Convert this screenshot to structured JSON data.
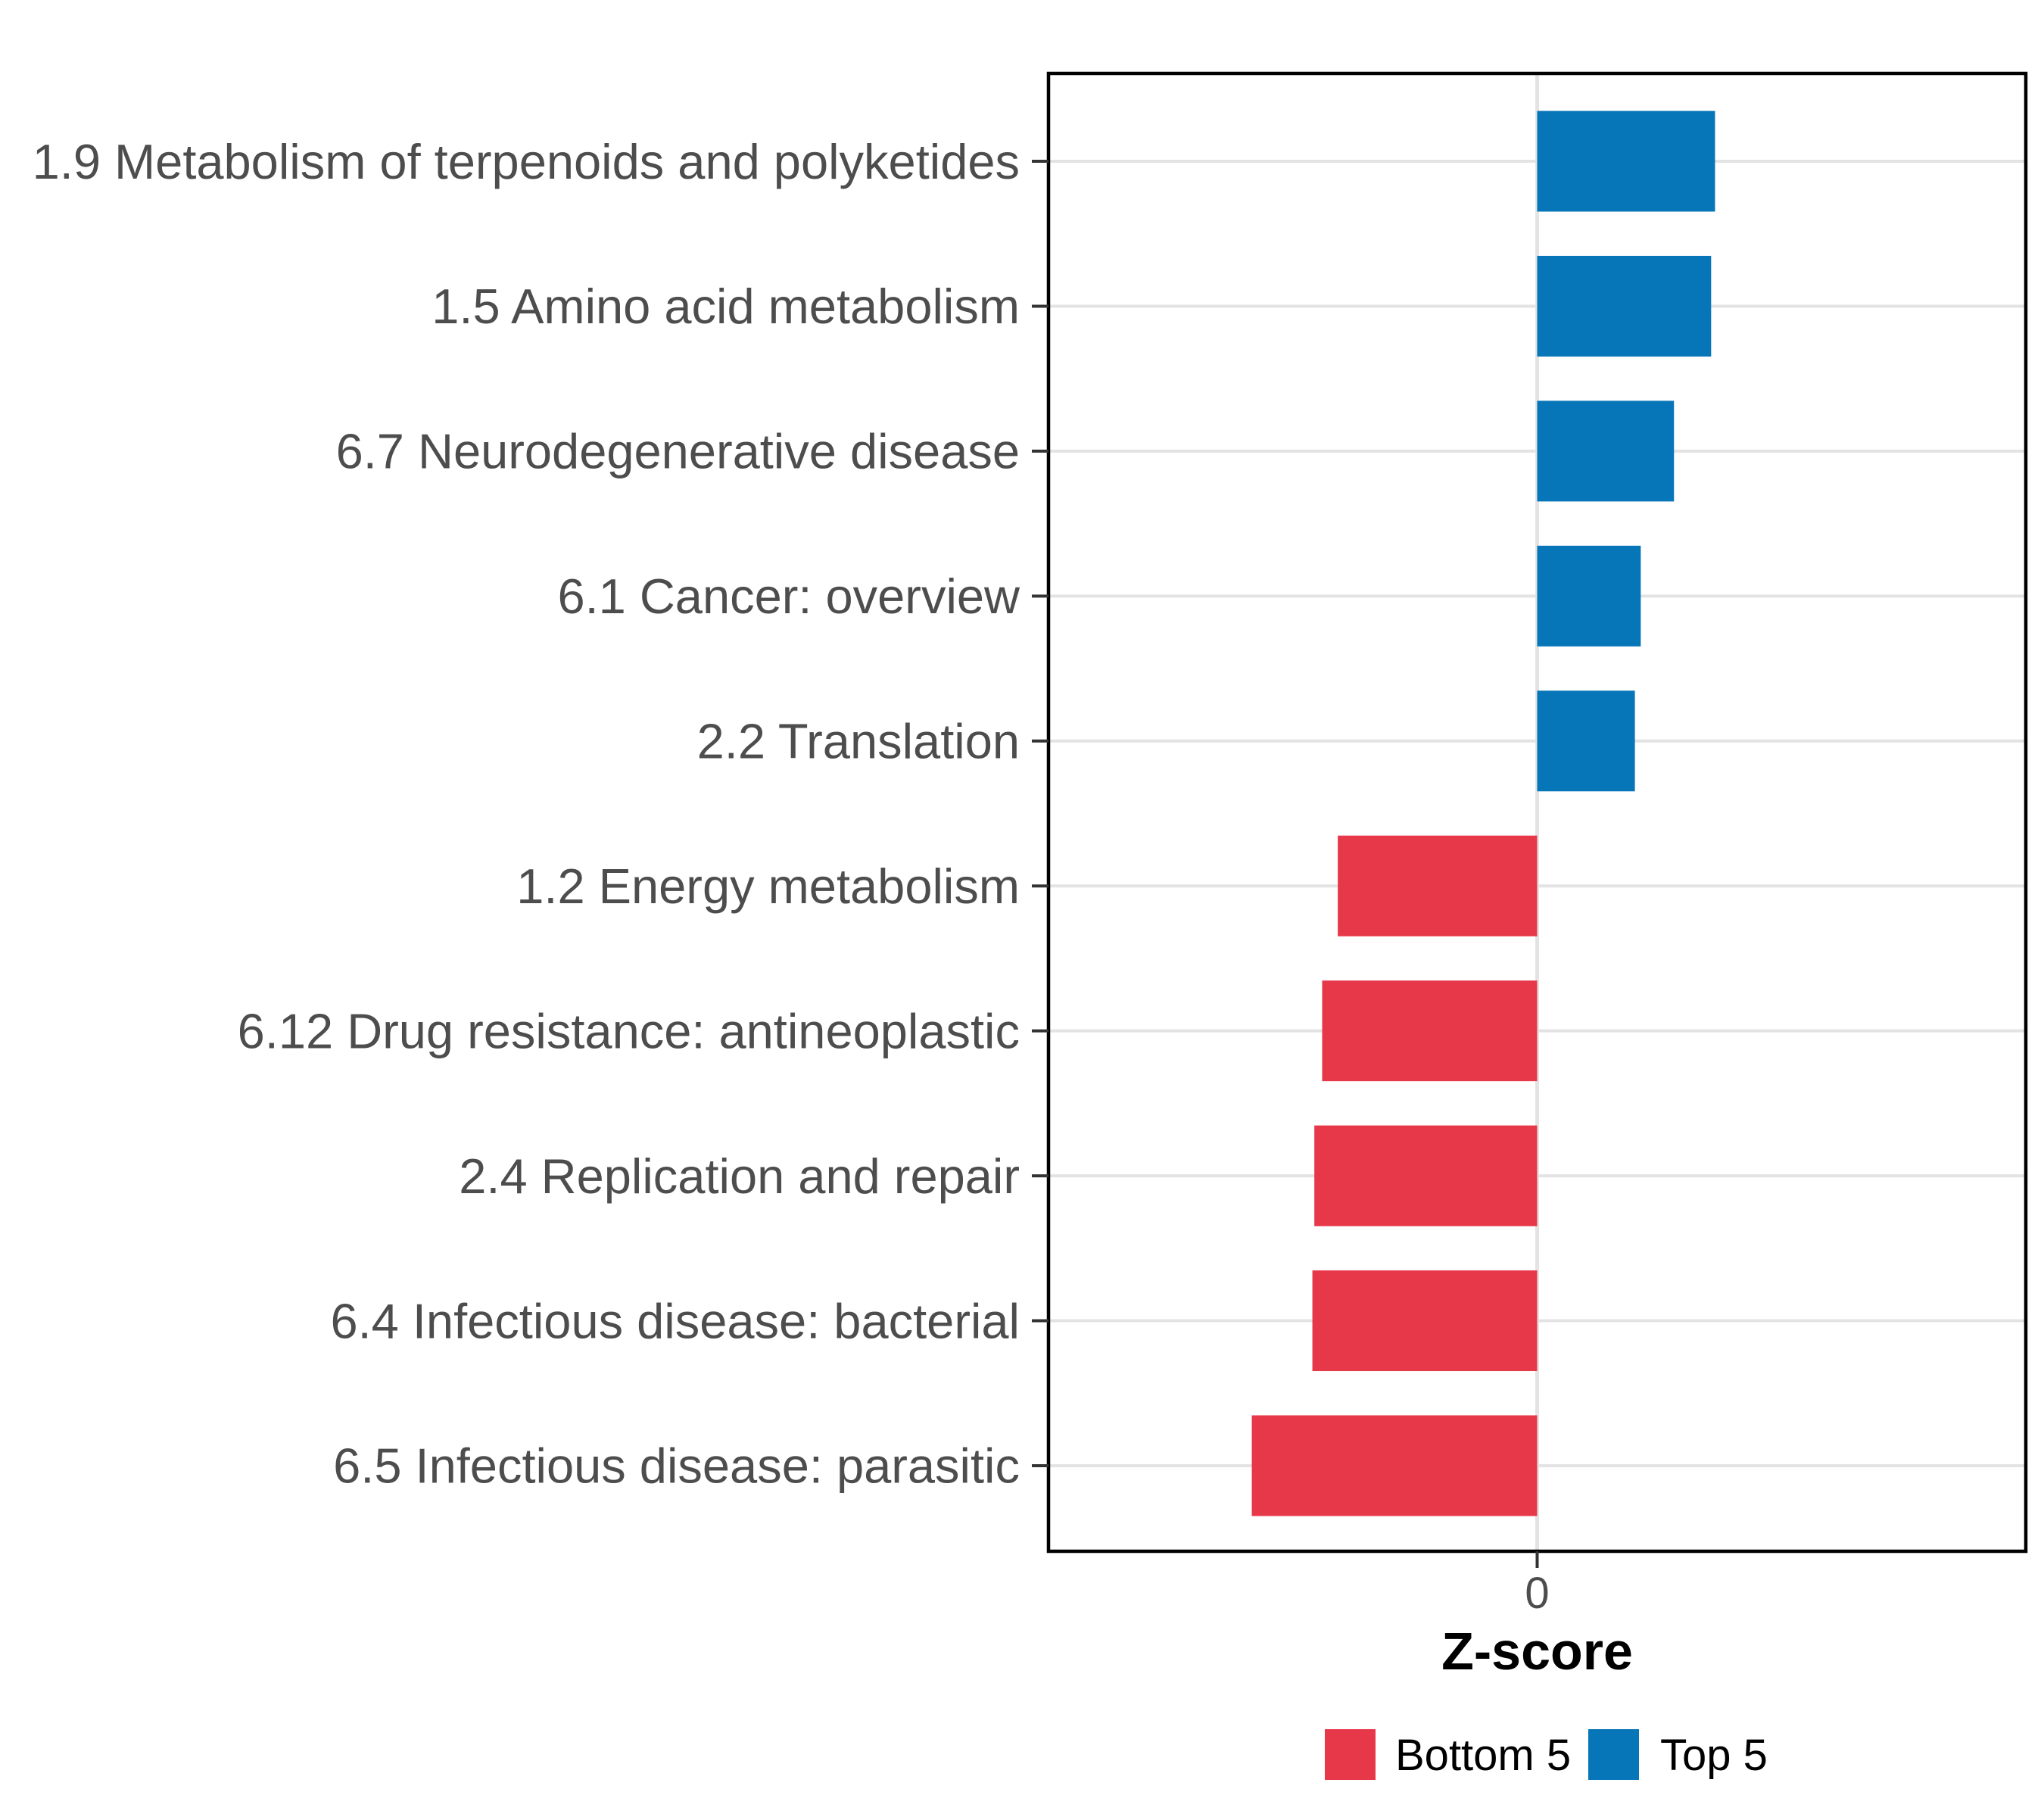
{
  "chart_data": {
    "type": "bar",
    "orientation": "horizontal",
    "title": "",
    "xlabel": "Z-score",
    "ylabel": "",
    "xlim": [
      -2.5,
      2.5
    ],
    "x_ticks": [
      {
        "value": 0,
        "label": "0"
      }
    ],
    "grid": {
      "horizontal_major": true,
      "vertical_major_at_zero": true,
      "minor": false
    },
    "categories": [
      "1.9 Metabolism of terpenoids and polyketides",
      "1.5 Amino acid metabolism",
      "6.7 Neurodegenerative disease",
      "6.1 Cancer: overview",
      "2.2 Translation",
      "1.2 Energy metabolism",
      "6.12 Drug resistance: antineoplastic",
      "2.4 Replication and repair",
      "6.4 Infectious disease: bacterial",
      "6.5 Infectious disease: parasitic"
    ],
    "values": [
      0.91,
      0.89,
      0.7,
      0.53,
      0.5,
      -1.02,
      -1.1,
      -1.14,
      -1.15,
      -1.46
    ],
    "group_of_category": [
      "Top 5",
      "Top 5",
      "Top 5",
      "Top 5",
      "Top 5",
      "Bottom 5",
      "Bottom 5",
      "Bottom 5",
      "Bottom 5",
      "Bottom 5"
    ],
    "legend": {
      "position": "bottom-center",
      "entries": [
        {
          "label": "Bottom 5",
          "color": "#E7384A"
        },
        {
          "label": "Top 5",
          "color": "#0776B8"
        }
      ]
    },
    "style": {
      "background": "#FFFFFF",
      "panel_border_color": "#000000",
      "grid_color": "#E3E3E3",
      "tick_color": "#333333",
      "axis_text_color": "#4D4D4D",
      "axis_title_color": "#000000",
      "legend_text_color": "#000000"
    }
  }
}
